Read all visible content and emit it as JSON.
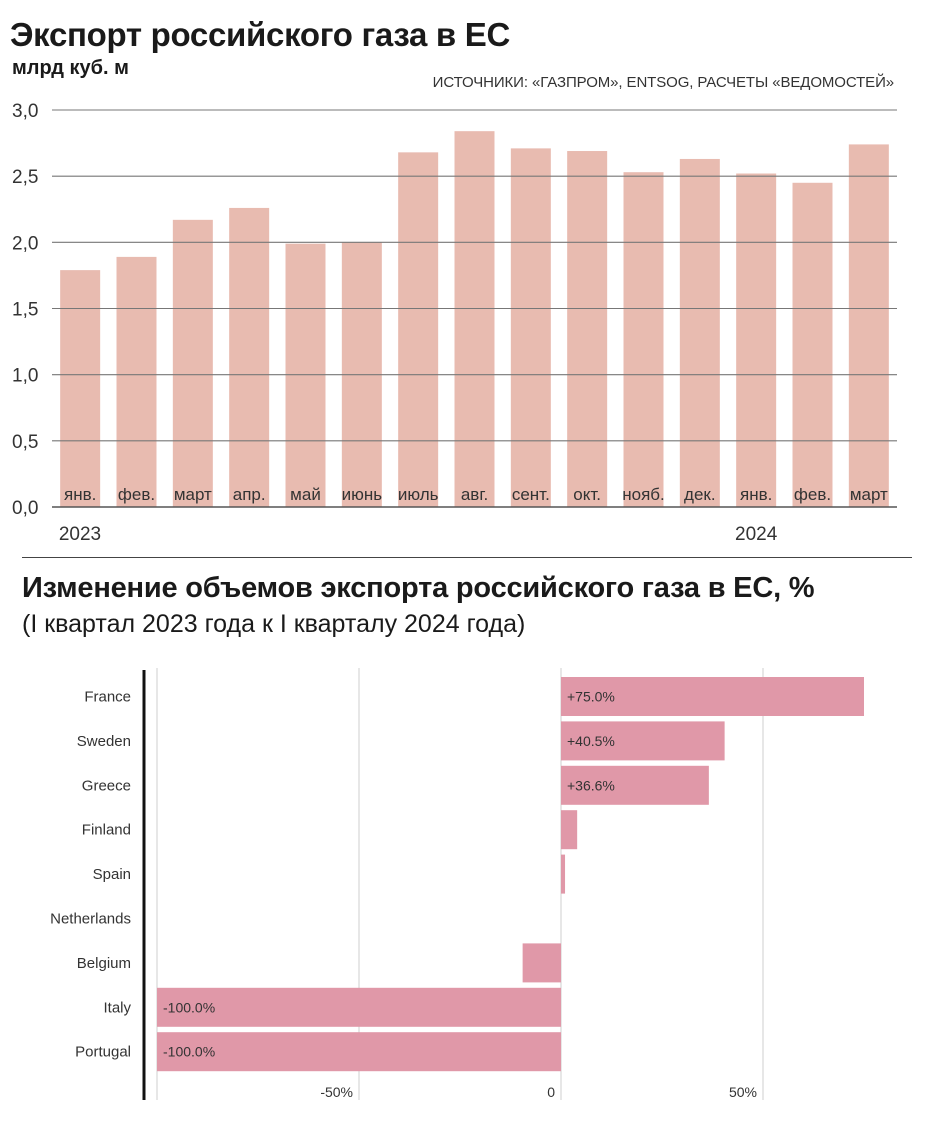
{
  "chart1": {
    "title": "Экспорт российского газа в ЕС",
    "unit": "млрд куб. м",
    "source": "ИСТОЧНИКИ: «ГАЗПРОМ», ENTSOG, РАСЧЕТЫ «ВЕДОМОСТЕЙ»",
    "bar_color": "#e8bbb0",
    "year_labels": [
      "2023",
      "2024"
    ]
  },
  "chart2": {
    "title": "Изменение объемов экспорта российского газа в ЕС, %",
    "subtitle": "(I квартал 2023 года к I кварталу 2024 года)",
    "bar_color": "#e098a8"
  },
  "chart_data": [
    {
      "type": "bar",
      "title": "Экспорт российского газа в ЕС",
      "ylabel": "млрд куб. м",
      "categories": [
        "янв.",
        "фев.",
        "март",
        "апр.",
        "май",
        "июнь",
        "июль",
        "авг.",
        "сент.",
        "окт.",
        "нояб.",
        "дек.",
        "янв.",
        "фев.",
        "март"
      ],
      "values": [
        1.79,
        1.89,
        2.17,
        2.26,
        1.99,
        2.0,
        2.68,
        2.84,
        2.71,
        2.69,
        2.53,
        2.63,
        2.52,
        2.45,
        2.74
      ],
      "ylim": [
        0,
        3.0
      ],
      "yticks": [
        "0,0",
        "0,5",
        "1,0",
        "1,5",
        "2,0",
        "2,5",
        "3,0"
      ],
      "ytick_values": [
        0,
        0.5,
        1.0,
        1.5,
        2.0,
        2.5,
        3.0
      ],
      "grid": true
    },
    {
      "type": "bar",
      "orientation": "horizontal",
      "title": "Изменение объемов экспорта российского газа в ЕС, %",
      "subtitle": "(I квартал 2023 года к I кварталу 2024 года)",
      "categories": [
        "France",
        "Sweden",
        "Greece",
        "Finland",
        "Spain",
        "Netherlands",
        "Belgium",
        "Italy",
        "Portugal"
      ],
      "values": [
        75.0,
        40.5,
        36.6,
        4.0,
        1.0,
        0,
        -9.5,
        -100.0,
        -100.0
      ],
      "data_labels": [
        "+75.0%",
        "+40.5%",
        "+36.6%",
        "",
        "",
        "",
        "",
        "-100.0%",
        "-100.0%"
      ],
      "xlim": [
        -100,
        75
      ],
      "xticks": [
        "-50%",
        "0",
        "50%"
      ],
      "xtick_values": [
        -50,
        0,
        50
      ],
      "grid": true
    }
  ]
}
